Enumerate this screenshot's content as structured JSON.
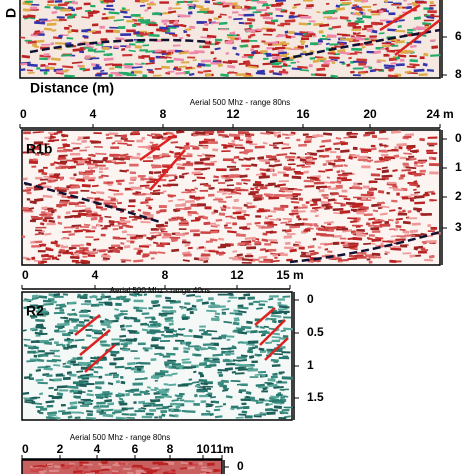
{
  "panels": [
    {
      "depth_label": "D",
      "yticks": [
        "6",
        "8"
      ],
      "xlabel": "Distance (m)"
    },
    {
      "caption": "Aerial 500 Mhz - range 80ns",
      "xticks": [
        "0",
        "4",
        "8",
        "12",
        "16",
        "20",
        "24 m"
      ],
      "label": "R1b",
      "yticks": [
        "0",
        "1",
        "2",
        "3"
      ]
    },
    {
      "caption": "Aerial 500 Mhz - range 40ns",
      "xticks": [
        "0",
        "4",
        "8",
        "12",
        "15 m"
      ],
      "label": "R2",
      "yticks": [
        "0",
        "0.5",
        "1",
        "1.5"
      ]
    },
    {
      "caption": "Aerial 500 Mhz - range 80ns",
      "xticks": [
        "0",
        "2",
        "4",
        "6",
        "8",
        "10",
        "11m"
      ],
      "yticks": [
        "0"
      ]
    }
  ]
}
